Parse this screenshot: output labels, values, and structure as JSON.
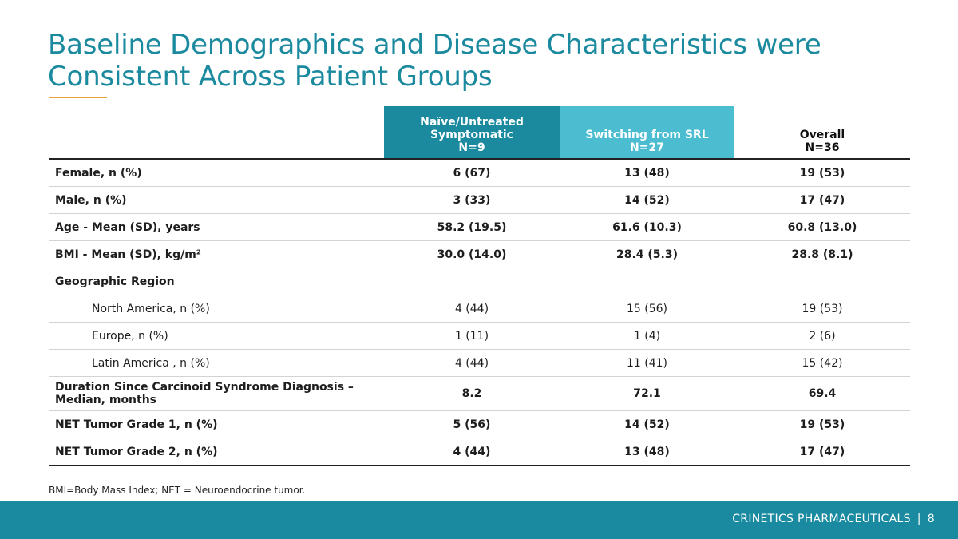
{
  "title": "Baseline Demographics and Disease Characteristics were Consistent Across Patient Groups",
  "colors": {
    "title": "#1b8a9f",
    "accent_line": "#e8a33d",
    "naive_header": "#1b8a9f",
    "switch_header": "#4cbdd1",
    "footer_bar": "#1a8aa0"
  },
  "table": {
    "headers": [
      {
        "lines": [
          "Naïve/Untreated",
          "Symptomatic",
          "N=9"
        ]
      },
      {
        "lines": [
          "Switching from SRL",
          "N=27"
        ]
      },
      {
        "lines": [
          "Overall",
          "N=36"
        ]
      }
    ],
    "rows": [
      {
        "label": "Female, n (%)",
        "values": [
          "6 (67)",
          "13 (48)",
          "19 (53)"
        ]
      },
      {
        "label": "Male, n (%)",
        "values": [
          "3 (33)",
          "14 (52)",
          "17 (47)"
        ]
      },
      {
        "label": "Age - Mean (SD), years",
        "values": [
          "58.2 (19.5)",
          "61.6 (10.3)",
          "60.8 (13.0)"
        ]
      },
      {
        "label": "BMI - Mean (SD), kg/m²",
        "values": [
          "30.0 (14.0)",
          "28.4 (5.3)",
          "28.8 (8.1)"
        ]
      },
      {
        "label": "Geographic Region"
      },
      {
        "label": "North America, n (%)",
        "values": [
          "4 (44)",
          "15 (56)",
          "19 (53)"
        ]
      },
      {
        "label": "Europe, n (%)",
        "values": [
          "1 (11)",
          "1 (4)",
          "2 (6)"
        ]
      },
      {
        "label": "Latin America , n (%)",
        "values": [
          "4 (44)",
          "11 (41)",
          "15 (42)"
        ]
      },
      {
        "label": "Duration Since Carcinoid Syndrome Diagnosis – Median, months",
        "values": [
          "8.2",
          "72.1",
          "69.4"
        ]
      },
      {
        "label": "NET Tumor Grade 1, n (%)",
        "values": [
          "5 (56)",
          "14 (52)",
          "19 (53)"
        ]
      },
      {
        "label": "NET Tumor Grade 2, n (%)",
        "values": [
          "4 (44)",
          "13 (48)",
          "17 (47)"
        ]
      }
    ]
  },
  "footnote": "BMI=Body Mass Index; NET = Neuroendocrine tumor.",
  "footer": {
    "company": "CRINETICS PHARMACEUTICALS",
    "separator": "|",
    "page_number": "8"
  }
}
